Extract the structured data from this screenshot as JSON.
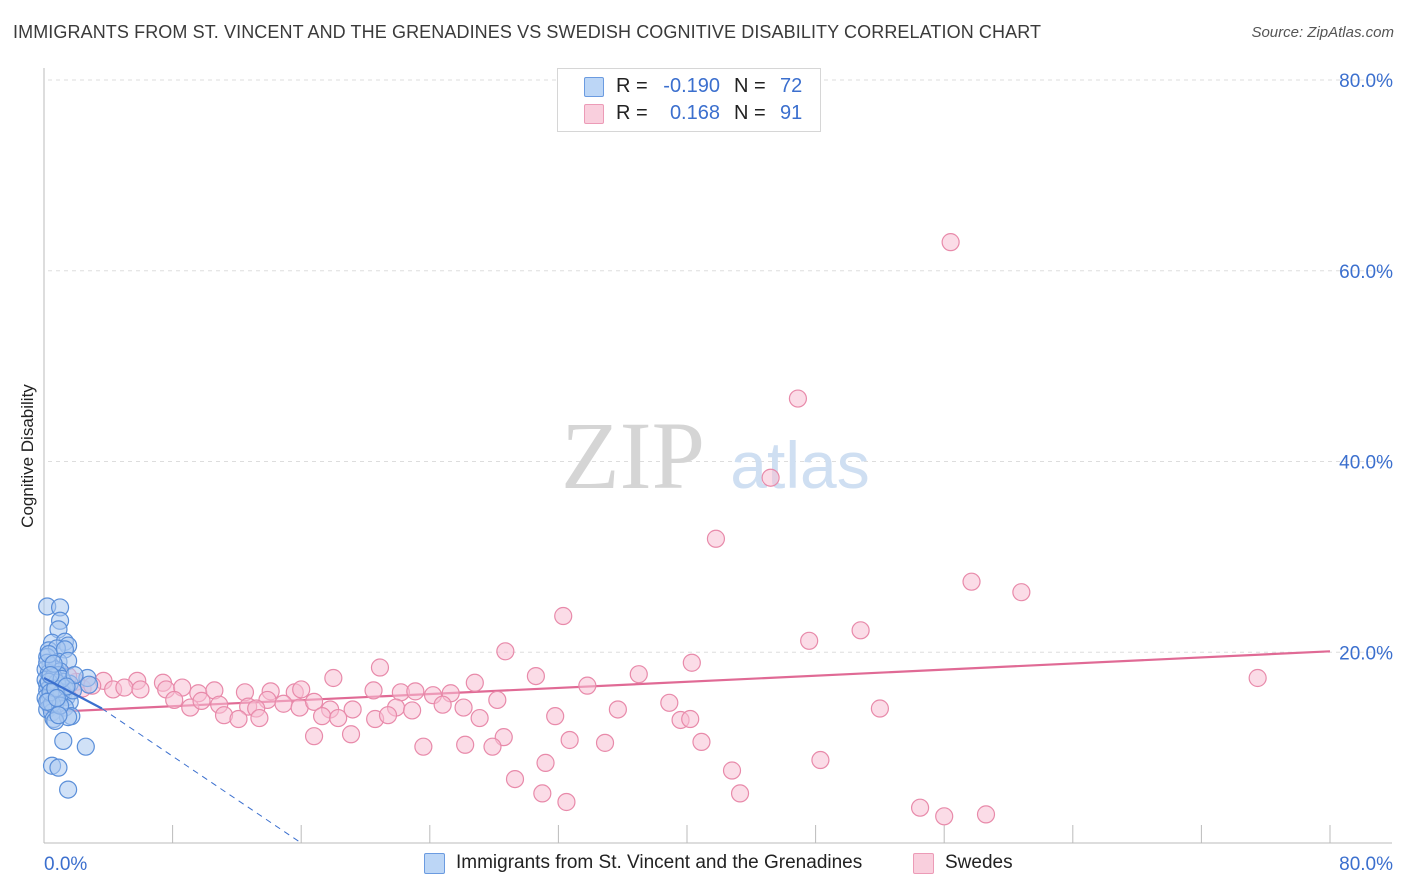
{
  "header": {
    "title": "IMMIGRANTS FROM ST. VINCENT AND THE GRENADINES VS SWEDISH COGNITIVE DISABILITY CORRELATION CHART",
    "source": "Source: ZipAtlas.com"
  },
  "watermark": {
    "zip": "ZIP",
    "atlas": "atlas"
  },
  "legend": {
    "rows": [
      {
        "r_label": "R =",
        "r_value": "-0.190",
        "n_label": "N =",
        "n_value": "72"
      },
      {
        "r_label": "R =",
        "r_value": "0.168",
        "n_label": "N =",
        "n_value": "91"
      }
    ]
  },
  "colors": {
    "blue_fill": "#a9c8f0",
    "blue_stroke": "#5b8fd9",
    "blue_line": "#3b6fce",
    "pink_fill": "#f7bfd3",
    "pink_stroke": "#e88aaa",
    "pink_line": "#e06a95",
    "tick_label": "#3b6fce",
    "grid": "#dddddd"
  },
  "chart_data": {
    "type": "scatter",
    "title": "IMMIGRANTS FROM ST. VINCENT AND THE GRENADINES VS SWEDISH COGNITIVE DISABILITY CORRELATION CHART",
    "xlabel": "",
    "ylabel": "Cognitive Disability",
    "xlim": [
      0,
      80
    ],
    "ylim": [
      0,
      80
    ],
    "x_tick_labels": [
      "0.0%",
      "80.0%"
    ],
    "y_tick_labels": [
      "20.0%",
      "40.0%",
      "60.0%",
      "80.0%"
    ],
    "y_ticks": [
      20,
      40,
      60,
      80
    ],
    "grid": true,
    "legend_position": "top-center",
    "series": [
      {
        "name": "Immigrants from St. Vincent and the Grenadines",
        "color": "#a9c8f0",
        "trend": {
          "x": [
            0,
            3.6
          ],
          "y": [
            17.3,
            14.1
          ],
          "dashed_x": [
            3.6,
            16
          ],
          "dashed_y": [
            14.1,
            0
          ]
        },
        "points": [
          [
            0.2,
            24.8
          ],
          [
            1.0,
            24.7
          ],
          [
            1.0,
            23.3
          ],
          [
            0.9,
            22.4
          ],
          [
            0.5,
            21.0
          ],
          [
            1.3,
            21.1
          ],
          [
            1.5,
            20.7
          ],
          [
            0.3,
            20.2
          ],
          [
            0.8,
            20.4
          ],
          [
            1.3,
            20.3
          ],
          [
            0.2,
            19.5
          ],
          [
            0.9,
            19.0
          ],
          [
            1.5,
            19.1
          ],
          [
            0.4,
            18.6
          ],
          [
            0.1,
            18.2
          ],
          [
            0.7,
            18.2
          ],
          [
            1.0,
            18.0
          ],
          [
            0.3,
            17.8
          ],
          [
            0.9,
            17.6
          ],
          [
            2.7,
            17.3
          ],
          [
            0.1,
            17.1
          ],
          [
            0.5,
            17.0
          ],
          [
            1.2,
            16.9
          ],
          [
            1.6,
            16.7
          ],
          [
            0.2,
            16.6
          ],
          [
            0.9,
            16.5
          ],
          [
            2.8,
            16.6
          ],
          [
            0.4,
            16.3
          ],
          [
            1.3,
            16.2
          ],
          [
            0.2,
            16.0
          ],
          [
            0.7,
            15.9
          ],
          [
            0.6,
            15.7
          ],
          [
            1.2,
            15.6
          ],
          [
            0.4,
            15.4
          ],
          [
            1.4,
            15.3
          ],
          [
            0.1,
            15.2
          ],
          [
            0.9,
            15.1
          ],
          [
            0.3,
            14.9
          ],
          [
            1.6,
            14.8
          ],
          [
            0.7,
            14.6
          ],
          [
            0.4,
            14.3
          ],
          [
            0.2,
            14.0
          ],
          [
            1.3,
            14.2
          ],
          [
            0.5,
            13.7
          ],
          [
            1.7,
            13.3
          ],
          [
            0.6,
            13.0
          ],
          [
            1.5,
            13.2
          ],
          [
            0.7,
            12.8
          ],
          [
            1.2,
            10.7
          ],
          [
            2.6,
            10.1
          ],
          [
            0.5,
            8.1
          ],
          [
            0.9,
            7.9
          ],
          [
            1.5,
            5.6
          ],
          [
            0.2,
            18.9
          ],
          [
            0.3,
            19.8
          ],
          [
            0.6,
            17.4
          ],
          [
            0.8,
            16.8
          ],
          [
            1.1,
            15.8
          ],
          [
            0.3,
            16.9
          ],
          [
            0.5,
            14.6
          ],
          [
            1.0,
            14.4
          ],
          [
            0.4,
            15.8
          ],
          [
            0.7,
            16.2
          ],
          [
            1.8,
            16.0
          ],
          [
            0.2,
            14.8
          ],
          [
            0.6,
            18.8
          ],
          [
            1.1,
            17.2
          ],
          [
            0.9,
            13.4
          ],
          [
            1.9,
            17.6
          ],
          [
            0.4,
            17.6
          ],
          [
            1.4,
            16.4
          ],
          [
            0.8,
            15.2
          ]
        ]
      },
      {
        "name": "Swedes",
        "color": "#f7bfd3",
        "trend": {
          "x": [
            0,
            80
          ],
          "y": [
            13.7,
            20.1
          ]
        },
        "points": [
          [
            56.4,
            63.0
          ],
          [
            46.9,
            46.6
          ],
          [
            45.2,
            38.3
          ],
          [
            41.8,
            31.9
          ],
          [
            57.7,
            27.4
          ],
          [
            60.8,
            26.3
          ],
          [
            32.3,
            23.8
          ],
          [
            50.8,
            22.3
          ],
          [
            47.6,
            21.2
          ],
          [
            28.7,
            20.1
          ],
          [
            40.3,
            18.9
          ],
          [
            20.9,
            18.4
          ],
          [
            37.0,
            17.7
          ],
          [
            30.6,
            17.5
          ],
          [
            75.5,
            17.3
          ],
          [
            18.0,
            17.3
          ],
          [
            2.0,
            16.9
          ],
          [
            3.7,
            17.0
          ],
          [
            5.8,
            17.0
          ],
          [
            7.4,
            16.8
          ],
          [
            1.5,
            17.5
          ],
          [
            2.4,
            16.2
          ],
          [
            3.0,
            16.5
          ],
          [
            4.3,
            16.1
          ],
          [
            5.0,
            16.3
          ],
          [
            6.0,
            16.1
          ],
          [
            7.6,
            16.1
          ],
          [
            8.6,
            16.3
          ],
          [
            9.6,
            15.7
          ],
          [
            10.6,
            16.0
          ],
          [
            12.5,
            15.8
          ],
          [
            14.1,
            15.9
          ],
          [
            15.6,
            15.8
          ],
          [
            20.5,
            16.0
          ],
          [
            22.2,
            15.8
          ],
          [
            23.1,
            15.9
          ],
          [
            24.2,
            15.5
          ],
          [
            25.3,
            15.7
          ],
          [
            26.8,
            16.8
          ],
          [
            33.8,
            16.5
          ],
          [
            8.1,
            15.0
          ],
          [
            9.1,
            14.2
          ],
          [
            9.8,
            14.9
          ],
          [
            10.9,
            14.5
          ],
          [
            12.7,
            14.3
          ],
          [
            13.9,
            15.0
          ],
          [
            13.2,
            14.1
          ],
          [
            14.9,
            14.6
          ],
          [
            15.9,
            14.2
          ],
          [
            16.8,
            14.8
          ],
          [
            17.8,
            14.0
          ],
          [
            19.2,
            14.0
          ],
          [
            21.9,
            14.2
          ],
          [
            24.8,
            14.5
          ],
          [
            26.1,
            14.2
          ],
          [
            28.2,
            15.0
          ],
          [
            35.7,
            14.0
          ],
          [
            38.9,
            14.7
          ],
          [
            11.2,
            13.4
          ],
          [
            12.1,
            13.0
          ],
          [
            13.4,
            13.1
          ],
          [
            17.3,
            13.3
          ],
          [
            18.3,
            13.1
          ],
          [
            20.6,
            13.0
          ],
          [
            21.4,
            13.4
          ],
          [
            27.1,
            13.1
          ],
          [
            31.8,
            13.3
          ],
          [
            39.6,
            12.9
          ],
          [
            40.2,
            13.0
          ],
          [
            52.0,
            14.1
          ],
          [
            19.1,
            11.4
          ],
          [
            16.8,
            11.2
          ],
          [
            28.6,
            11.1
          ],
          [
            32.7,
            10.8
          ],
          [
            34.9,
            10.5
          ],
          [
            40.9,
            10.6
          ],
          [
            23.6,
            10.1
          ],
          [
            26.2,
            10.3
          ],
          [
            27.9,
            10.1
          ],
          [
            31.2,
            8.4
          ],
          [
            48.3,
            8.7
          ],
          [
            42.8,
            7.6
          ],
          [
            29.3,
            6.7
          ],
          [
            31.0,
            5.2
          ],
          [
            43.3,
            5.2
          ],
          [
            32.5,
            4.3
          ],
          [
            54.5,
            3.7
          ],
          [
            56.0,
            2.8
          ],
          [
            58.6,
            3.0
          ],
          [
            16.0,
            16.1
          ],
          [
            22.9,
            13.9
          ]
        ]
      }
    ]
  },
  "bottom_legend": {
    "items": [
      {
        "label": "Immigrants from St. Vincent and the Grenadines"
      },
      {
        "label": "Swedes"
      }
    ]
  }
}
